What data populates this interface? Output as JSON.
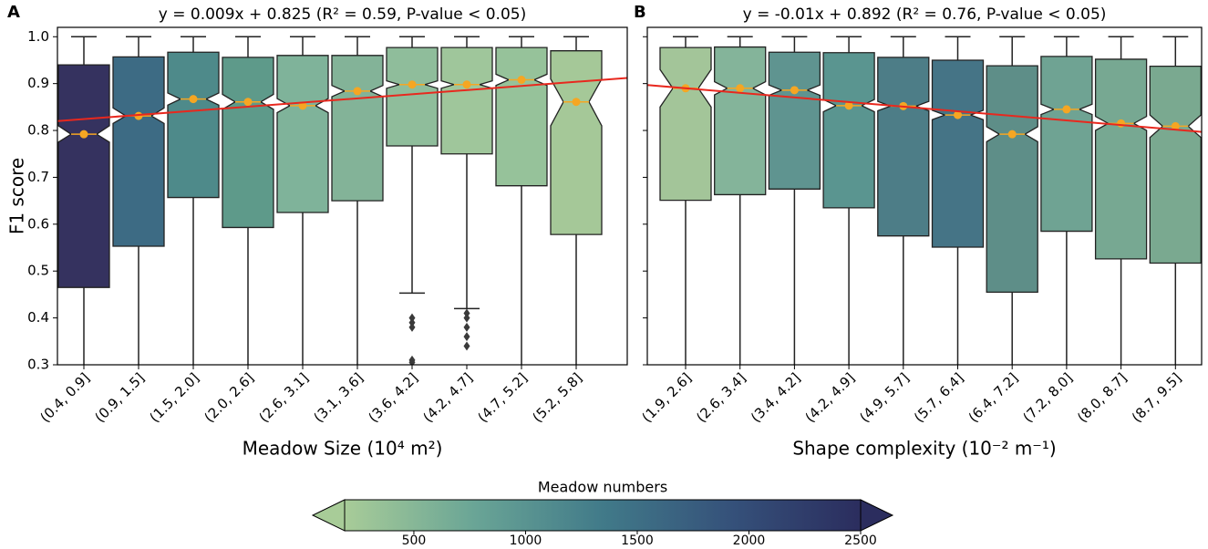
{
  "chart_data": [
    {
      "type": "box",
      "panel": "A",
      "title": "y = 0.009x + 0.825  (R² = 0.59, P-value < 0.05)",
      "x_label": "Meadow Size (10⁴ m²)",
      "y_label": "F1 score",
      "categories": [
        "(0.4, 0.9]",
        "(0.9, 1.5]",
        "(1.5, 2.0]",
        "(2.0, 2.6]",
        "(2.6, 3.1]",
        "(3.1, 3.6]",
        "(3.6, 4.2]",
        "(4.2, 4.7]",
        "(4.7, 5.2]",
        "(5.2, 5.8]"
      ],
      "ylim": [
        0.3,
        1.02
      ],
      "yticks": [
        0.3,
        0.4,
        0.5,
        0.6,
        0.7,
        0.8,
        0.9,
        {
          "value": 1,
          "label": "1.0"
        }
      ],
      "trend_line": {
        "color": "#e8281e",
        "values": [
          0.82,
          0.912
        ]
      },
      "median_marker_color": "#f5a623",
      "boxes": [
        {
          "q1": 0.465,
          "median": 0.792,
          "q3": 0.94,
          "whisker_low": 0.3,
          "whisker_high": 1.0,
          "notch": [
            0.775,
            0.81
          ],
          "color": "#35325f",
          "fliers": []
        },
        {
          "q1": 0.553,
          "median": 0.831,
          "q3": 0.957,
          "whisker_low": 0.3,
          "whisker_high": 1.0,
          "notch": [
            0.815,
            0.848
          ],
          "color": "#3d6b84",
          "fliers": []
        },
        {
          "q1": 0.657,
          "median": 0.867,
          "q3": 0.967,
          "whisker_low": 0.3,
          "whisker_high": 1.0,
          "notch": [
            0.854,
            0.88
          ],
          "color": "#4e8a8a",
          "fliers": []
        },
        {
          "q1": 0.593,
          "median": 0.861,
          "q3": 0.956,
          "whisker_low": 0.3,
          "whisker_high": 1.0,
          "notch": [
            0.845,
            0.877
          ],
          "color": "#5e9a8a",
          "fliers": []
        },
        {
          "q1": 0.625,
          "median": 0.853,
          "q3": 0.96,
          "whisker_low": 0.3,
          "whisker_high": 1.0,
          "notch": [
            0.838,
            0.868
          ],
          "color": "#7fb39a",
          "fliers": []
        },
        {
          "q1": 0.65,
          "median": 0.884,
          "q3": 0.96,
          "whisker_low": 0.3,
          "whisker_high": 1.0,
          "notch": [
            0.872,
            0.896
          ],
          "color": "#83b398",
          "fliers": []
        },
        {
          "q1": 0.767,
          "median": 0.898,
          "q3": 0.977,
          "whisker_low": 0.453,
          "whisker_high": 1.0,
          "notch": [
            0.89,
            0.906
          ],
          "color": "#8fbd9b",
          "fliers": [
            0.4,
            0.39,
            0.38,
            0.31,
            0.305
          ]
        },
        {
          "q1": 0.75,
          "median": 0.898,
          "q3": 0.977,
          "whisker_low": 0.42,
          "whisker_high": 1.0,
          "notch": [
            0.89,
            0.906
          ],
          "color": "#9fc69b",
          "fliers": [
            0.41,
            0.4,
            0.38,
            0.36,
            0.34
          ]
        },
        {
          "q1": 0.682,
          "median": 0.908,
          "q3": 0.977,
          "whisker_low": 0.3,
          "whisker_high": 1.0,
          "notch": [
            0.896,
            0.92
          ],
          "color": "#96c29a",
          "fliers": []
        },
        {
          "q1": 0.578,
          "median": 0.861,
          "q3": 0.97,
          "whisker_low": 0.3,
          "whisker_high": 1.0,
          "notch": [
            0.81,
            0.91
          ],
          "color": "#a5c898",
          "fliers": []
        }
      ]
    },
    {
      "type": "box",
      "panel": "B",
      "title": "y = -0.01x + 0.892  (R² = 0.76, P-value < 0.05)",
      "x_label": "Shape complexity (10⁻² m⁻¹)",
      "categories": [
        "(1.9, 2.6]",
        "(2.6, 3.4]",
        "(3.4, 4.2]",
        "(4.2, 4.9]",
        "(4.9, 5.7]",
        "(5.7, 6.4]",
        "(6.4, 7.2]",
        "(7.2, 8.0]",
        "(8.0, 8.7]",
        "(8.7, 9.5]"
      ],
      "ylim": [
        0.3,
        1.02
      ],
      "yticks": [
        0.3,
        0.4,
        0.5,
        0.6,
        0.7,
        0.8,
        0.9,
        1
      ],
      "trend_line": {
        "color": "#e8281e",
        "values": [
          0.897,
          0.797
        ]
      },
      "median_marker_color": "#f5a623",
      "boxes": [
        {
          "q1": 0.651,
          "median": 0.89,
          "q3": 0.977,
          "whisker_low": 0.3,
          "whisker_high": 1.0,
          "notch": [
            0.85,
            0.93
          ],
          "color": "#a3c599",
          "fliers": []
        },
        {
          "q1": 0.663,
          "median": 0.89,
          "q3": 0.978,
          "whisker_low": 0.3,
          "whisker_high": 1.0,
          "notch": [
            0.876,
            0.904
          ],
          "color": "#84b49a",
          "fliers": []
        },
        {
          "q1": 0.675,
          "median": 0.886,
          "q3": 0.967,
          "whisker_low": 0.3,
          "whisker_high": 1.0,
          "notch": [
            0.875,
            0.897
          ],
          "color": "#5f9490",
          "fliers": []
        },
        {
          "q1": 0.635,
          "median": 0.853,
          "q3": 0.966,
          "whisker_low": 0.3,
          "whisker_high": 1.0,
          "notch": [
            0.84,
            0.866
          ],
          "color": "#5a9590",
          "fliers": []
        },
        {
          "q1": 0.575,
          "median": 0.852,
          "q3": 0.956,
          "whisker_low": 0.3,
          "whisker_high": 1.0,
          "notch": [
            0.842,
            0.862
          ],
          "color": "#4d7d87",
          "fliers": []
        },
        {
          "q1": 0.551,
          "median": 0.833,
          "q3": 0.95,
          "whisker_low": 0.3,
          "whisker_high": 1.0,
          "notch": [
            0.823,
            0.843
          ],
          "color": "#457486",
          "fliers": []
        },
        {
          "q1": 0.455,
          "median": 0.792,
          "q3": 0.938,
          "whisker_low": 0.3,
          "whisker_high": 1.0,
          "notch": [
            0.776,
            0.808
          ],
          "color": "#5e8e88",
          "fliers": []
        },
        {
          "q1": 0.585,
          "median": 0.845,
          "q3": 0.958,
          "whisker_low": 0.3,
          "whisker_high": 1.0,
          "notch": [
            0.834,
            0.856
          ],
          "color": "#6fa393",
          "fliers": []
        },
        {
          "q1": 0.526,
          "median": 0.815,
          "q3": 0.952,
          "whisker_low": 0.3,
          "whisker_high": 1.0,
          "notch": [
            0.8,
            0.83
          ],
          "color": "#77a892",
          "fliers": []
        },
        {
          "q1": 0.517,
          "median": 0.809,
          "q3": 0.937,
          "whisker_low": 0.3,
          "whisker_high": 1.0,
          "notch": [
            0.785,
            0.833
          ],
          "color": "#7aa990",
          "fliers": []
        }
      ]
    },
    {
      "type": "colorbar",
      "title": "Meadow numbers",
      "clim": [
        190,
        2500
      ],
      "ticks": [
        500,
        1000,
        1500,
        2000,
        2500
      ],
      "colors": [
        "#a8cc98",
        "#6aa596",
        "#417a89",
        "#35517a",
        "#2b2d5e"
      ],
      "under_color": "#a8cc98",
      "over_color": "#2b2d5e"
    }
  ]
}
